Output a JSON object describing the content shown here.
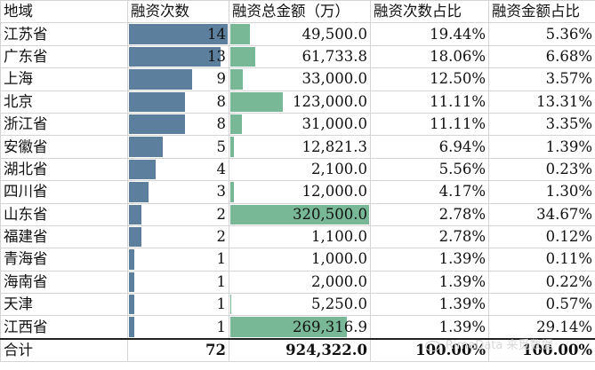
{
  "columns": [
    "地域",
    "融资次数",
    "融资总金额（万）",
    "融资次数占比",
    "融资金额占比"
  ],
  "rows": [
    {
      "region": "江苏省",
      "count": "14",
      "amount": "49,500.0",
      "count_pct": "19.44%",
      "amount_pct": "5.36%",
      "count_value": 14,
      "amount_value": 49500.0
    },
    {
      "region": "广东省",
      "count": "13",
      "amount": "61,733.8",
      "count_pct": "18.06%",
      "amount_pct": "6.68%",
      "count_value": 13,
      "amount_value": 61733.8
    },
    {
      "region": "上海",
      "count": "9",
      "amount": "33,000.0",
      "count_pct": "12.50%",
      "amount_pct": "3.57%",
      "count_value": 9,
      "amount_value": 33000.0
    },
    {
      "region": "北京",
      "count": "8",
      "amount": "123,000.0",
      "count_pct": "11.11%",
      "amount_pct": "13.31%",
      "count_value": 8,
      "amount_value": 123000.0
    },
    {
      "region": "浙江省",
      "count": "8",
      "amount": "31,000.0",
      "count_pct": "11.11%",
      "amount_pct": "3.35%",
      "count_value": 8,
      "amount_value": 31000.0
    },
    {
      "region": "安徽省",
      "count": "5",
      "amount": "12,821.3",
      "count_pct": "6.94%",
      "amount_pct": "1.39%",
      "count_value": 5,
      "amount_value": 12821.3
    },
    {
      "region": "湖北省",
      "count": "4",
      "amount": "2,100.0",
      "count_pct": "5.56%",
      "amount_pct": "0.23%",
      "count_value": 4,
      "amount_value": 2100.0
    },
    {
      "region": "四川省",
      "count": "3",
      "amount": "12,000.0",
      "count_pct": "4.17%",
      "amount_pct": "1.30%",
      "count_value": 3,
      "amount_value": 12000.0
    },
    {
      "region": "山东省",
      "count": "2",
      "amount": "320,500.0",
      "count_pct": "2.78%",
      "amount_pct": "34.67%",
      "count_value": 2,
      "amount_value": 320500.0
    },
    {
      "region": "福建省",
      "count": "2",
      "amount": "1,100.0",
      "count_pct": "2.78%",
      "amount_pct": "0.12%",
      "count_value": 2,
      "amount_value": 1100.0
    },
    {
      "region": "青海省",
      "count": "1",
      "amount": "1,000.0",
      "count_pct": "1.39%",
      "amount_pct": "0.11%",
      "count_value": 1,
      "amount_value": 1000.0
    },
    {
      "region": "海南省",
      "count": "1",
      "amount": "2,000.0",
      "count_pct": "1.39%",
      "amount_pct": "0.22%",
      "count_value": 1,
      "amount_value": 2000.0
    },
    {
      "region": "天津",
      "count": "1",
      "amount": "5,250.0",
      "count_pct": "1.39%",
      "amount_pct": "0.57%",
      "count_value": 1,
      "amount_value": 5250.0
    },
    {
      "region": "江西省",
      "count": "1",
      "amount": "269,316.9",
      "count_pct": "1.39%",
      "amount_pct": "29.14%",
      "count_value": 1,
      "amount_value": 269316.9
    }
  ],
  "total": {
    "region": "合计",
    "count": "72",
    "amount": "924,322.0",
    "count_pct": "100.00%",
    "amount_pct": "100.00%"
  },
  "watermark": "RimeData 来觅数据",
  "colors": {
    "count_bar": "#5b7f9c",
    "amount_bar": "#78b896",
    "grid": "#d4d4d4"
  }
}
